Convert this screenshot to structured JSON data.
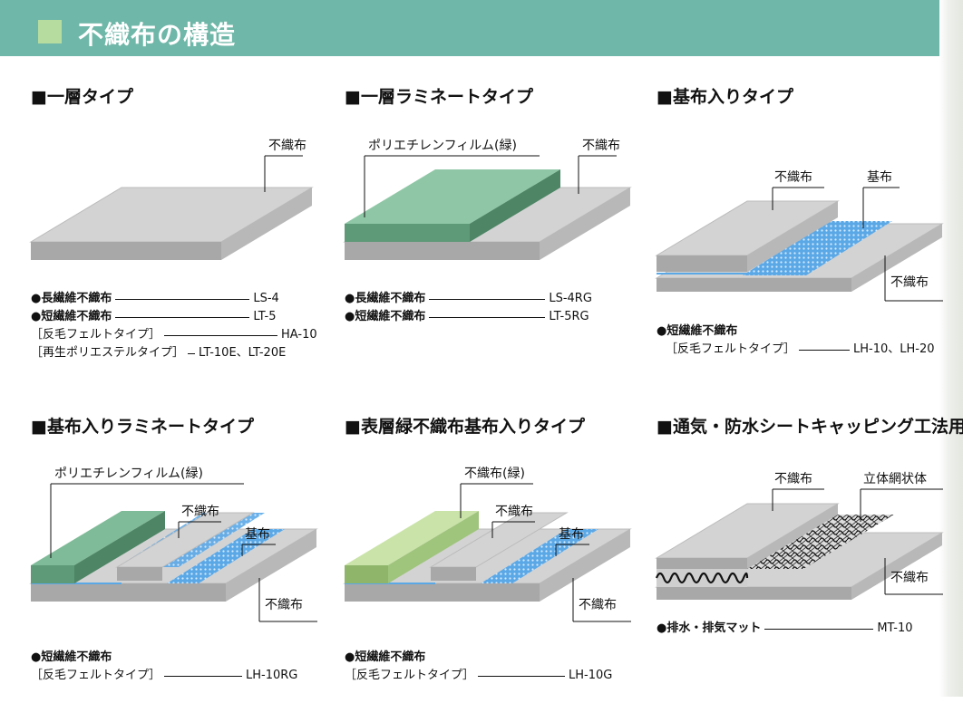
{
  "header": {
    "title": "不織布の構造"
  },
  "panels": [
    {
      "title": "■一層タイプ",
      "labels": {
        "nonwoven": "不織布"
      },
      "specs": [
        {
          "name": "●長繊維不織布",
          "code": "LS-4"
        },
        {
          "name": "●短繊維不織布",
          "code": "LT-5"
        },
        {
          "name": "［反毛フェルトタイプ］",
          "code": "HA-10"
        },
        {
          "name": "［再生ポリエステルタイプ］",
          "code": "LT-10E、LT-20E"
        }
      ]
    },
    {
      "title": "■一層ラミネートタイプ",
      "labels": {
        "film": "ポリエチレンフィルム(緑)",
        "nonwoven": "不織布"
      },
      "specs": [
        {
          "name": "●長繊維不織布",
          "code": "LS-4RG"
        },
        {
          "name": "●短繊維不織布",
          "code": "LT-5RG"
        }
      ]
    },
    {
      "title": "■基布入りタイプ",
      "labels": {
        "nonwoven_top": "不織布",
        "base": "基布",
        "nonwoven_bottom": "不織布"
      },
      "specs": [
        {
          "name": "●短繊維不織布",
          "code": ""
        },
        {
          "name": "［反毛フェルトタイプ］",
          "code": "LH-10、LH-20"
        }
      ]
    },
    {
      "title": "■基布入りラミネートタイプ",
      "labels": {
        "film": "ポリエチレンフィルム(緑)",
        "nonwoven_top": "不織布",
        "base": "基布",
        "nonwoven_bottom": "不織布"
      },
      "specs": [
        {
          "name": "●短繊維不織布",
          "code": ""
        },
        {
          "name": "［反毛フェルトタイプ］",
          "code": "LH-10RG"
        }
      ]
    },
    {
      "title": "■表層緑不織布基布入りタイプ",
      "labels": {
        "green_nonwoven": "不織布(緑)",
        "nonwoven_top": "不織布",
        "base": "基布",
        "nonwoven_bottom": "不織布"
      },
      "specs": [
        {
          "name": "●短繊維不織布",
          "code": ""
        },
        {
          "name": "［反毛フェルトタイプ］",
          "code": "LH-10G"
        }
      ]
    },
    {
      "title": "■通気・防水シートキャッピング工法用",
      "labels": {
        "nonwoven_top": "不織布",
        "mesh": "立体網状体",
        "nonwoven_bottom": "不織布"
      },
      "specs": [
        {
          "name": "●排水・排気マット",
          "code": "MT-10"
        }
      ]
    }
  ],
  "colors": {
    "header": "#6fb7a8",
    "header_square": "#b7dca0",
    "gray_top": "#d3d3d3",
    "gray_front": "#a8a8a8",
    "film_top": "#8fc7a6",
    "film_front": "#5f9a78",
    "light_green_top": "#c9e3a8",
    "light_green_front": "#8fb56b",
    "base_cloth": "#5ba8e6"
  }
}
